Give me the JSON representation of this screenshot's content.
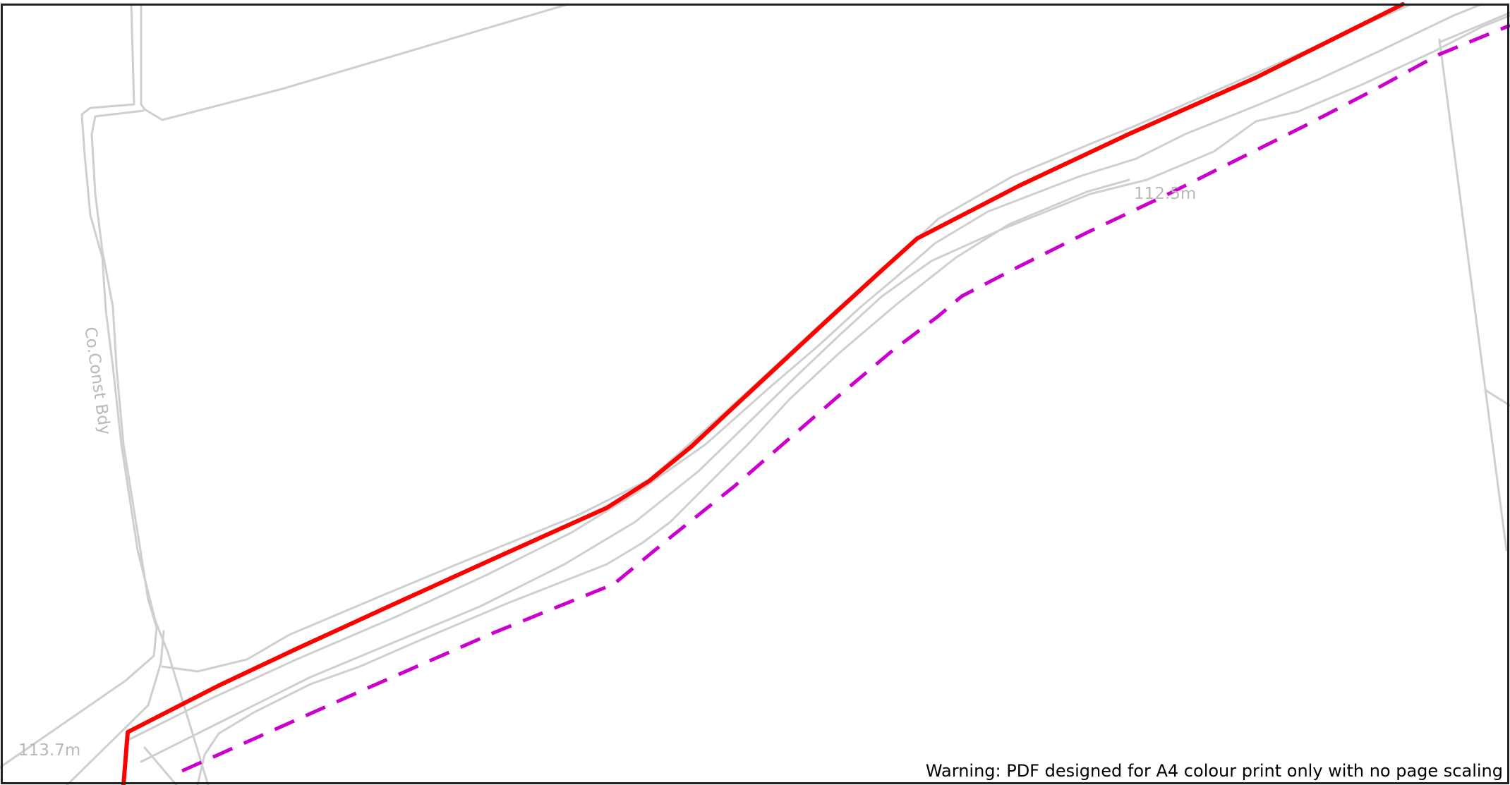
{
  "map": {
    "labels": {
      "spot_height_1": "112.5m",
      "spot_height_2": "113.7m",
      "boundary": "Co.Const Bdy"
    },
    "warning": "Warning: PDF designed for A4 colour print only with no page scaling",
    "colors": {
      "red_boundary": "#ff0000",
      "magenta_boundary": "#cc00cc",
      "base_lines": "#cfcfcf",
      "labels": "#b9b9b9",
      "frame": "#222222"
    }
  }
}
